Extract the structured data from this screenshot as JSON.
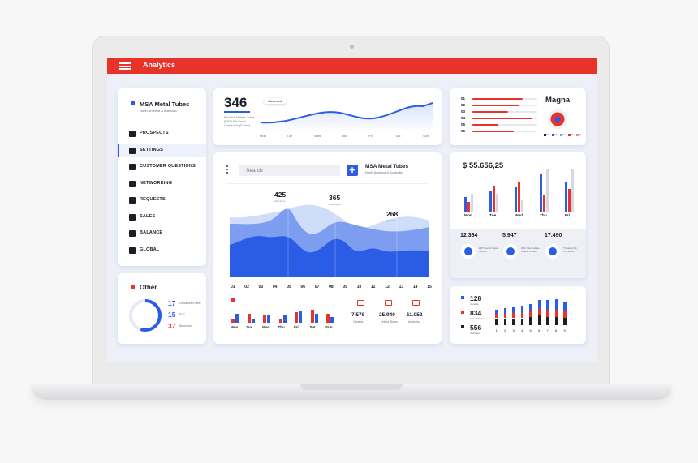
{
  "app": {
    "title": "Analytics"
  },
  "sidebar": {
    "company": "MSA Metal Tubes",
    "region": "North America & Australia",
    "items": [
      {
        "label": "PROSPECTS",
        "icon": "briefcase-icon"
      },
      {
        "label": "SETTINGS",
        "icon": "gear-icon"
      },
      {
        "label": "CUSTOMER QUESTIONS",
        "icon": "info-icon"
      },
      {
        "label": "NETWORKING",
        "icon": "share-icon"
      },
      {
        "label": "REQUESTS",
        "icon": "mail-icon"
      },
      {
        "label": "SALES",
        "icon": "bar-chart-icon"
      },
      {
        "label": "BALANCE",
        "icon": "calculator-icon"
      },
      {
        "label": "GLOBAL",
        "icon": "globe-icon"
      }
    ],
    "active_index": 1
  },
  "other": {
    "title": "Other",
    "stats": [
      {
        "value": "17",
        "label": "Galvanized Steel",
        "color": "#2b5ce6"
      },
      {
        "value": "15",
        "label": "PVC",
        "color": "#2b5ce6"
      },
      {
        "value": "37",
        "label": "Aluminum",
        "color": "#e8332a"
      }
    ],
    "ring_fraction": 0.55
  },
  "top_stat": {
    "value": "346",
    "desc": "Electrical Metallic Tubes (EMT) Set-Screw Connectors (6-Pack)",
    "tooltip": "Steamsub",
    "days": [
      "Mon",
      "Tue",
      "Wed",
      "Thu",
      "Fri",
      "Sat",
      "Sun"
    ]
  },
  "main_chart": {
    "search_placeholder": "Search",
    "company": "MSA Metal Tubes",
    "region": "North America & Australia",
    "callouts": [
      {
        "value": "425",
        "label": "Aluminum"
      },
      {
        "value": "365",
        "label": "Galvanized"
      },
      {
        "value": "268",
        "label": "Stainless"
      }
    ],
    "x_ticks": [
      "01",
      "02",
      "03",
      "04",
      "05",
      "06",
      "07",
      "08",
      "09",
      "10",
      "11",
      "12",
      "13",
      "14",
      "15"
    ],
    "bar_days": [
      "Mon",
      "Tue",
      "Wed",
      "Thu",
      "Fri",
      "Sat",
      "Sun"
    ],
    "bar_values": [
      [
        3,
        6
      ],
      [
        6,
        3
      ],
      [
        5,
        5
      ],
      [
        2,
        5
      ],
      [
        7,
        8
      ],
      [
        9,
        6
      ],
      [
        6,
        4
      ]
    ],
    "devices": [
      {
        "value": "7.578",
        "label": "Canada",
        "icon": "desktop-icon"
      },
      {
        "value": "25.940",
        "label": "United States",
        "icon": "tablet-icon"
      },
      {
        "value": "11.052",
        "label": "Australia",
        "icon": "laptop-icon"
      }
    ],
    "colors": {
      "blue": "#2b5ce6",
      "red": "#e8332a"
    }
  },
  "magna": {
    "title": "Magna",
    "rows": [
      "01",
      "02",
      "03",
      "04",
      "05",
      "06"
    ],
    "values": [
      0.78,
      0.72,
      0.55,
      0.92,
      0.4,
      0.64
    ],
    "legend": [
      "01",
      "02",
      "03",
      "04",
      "05"
    ]
  },
  "revenue": {
    "amount": "$ 55.656,25",
    "days": [
      "Mon",
      "Tue",
      "Wed",
      "Thu",
      "Fri"
    ],
    "stats": [
      {
        "value": "12.364",
        "label": "EMT Electric Metal Conduit"
      },
      {
        "value": "5.947",
        "label": "RMC Intermediate Metallic Conduit"
      },
      {
        "value": "17.490",
        "label": "Threaded RC connection"
      }
    ]
  },
  "stacked": {
    "legend": [
      {
        "value": "128",
        "label": "Canada",
        "color": "#2b5ce6"
      },
      {
        "value": "834",
        "label": "United States",
        "color": "#e8332a"
      },
      {
        "value": "556",
        "label": "Australia",
        "color": "#1d1d28"
      }
    ],
    "ticks": [
      "1",
      "2",
      "3",
      "4",
      "5",
      "6",
      "7",
      "8",
      "9"
    ]
  }
}
